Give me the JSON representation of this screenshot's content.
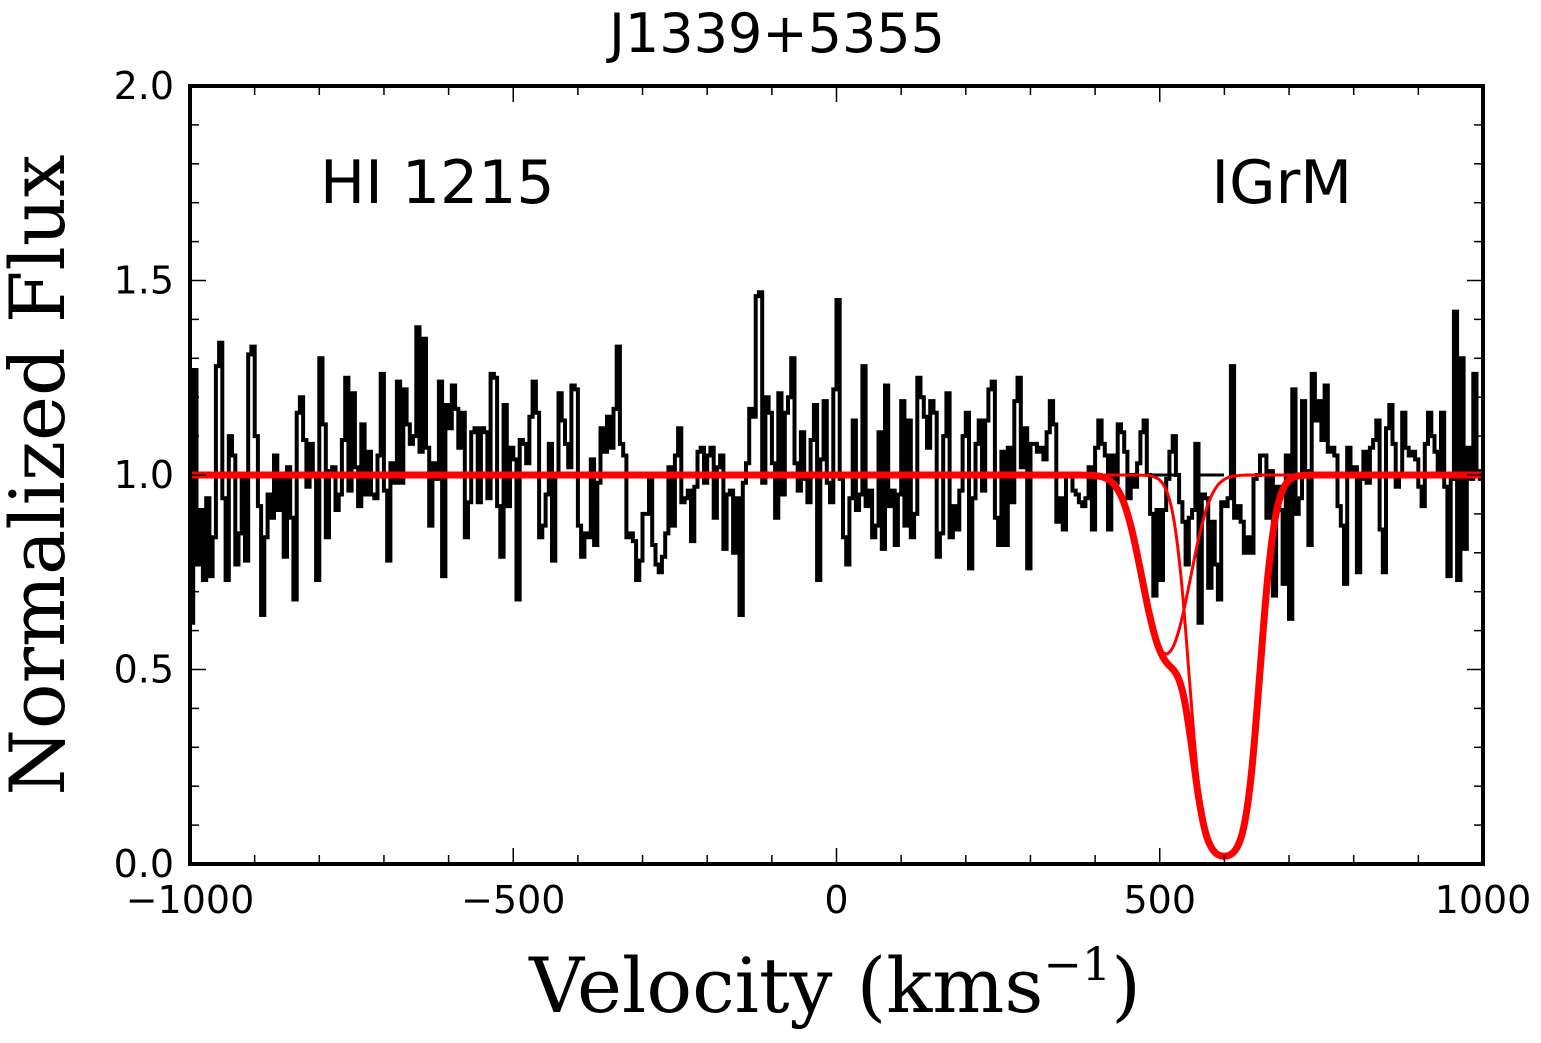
{
  "chart_data": {
    "type": "line",
    "title": "J1339+5355",
    "xlabel": "Velocity (kms",
    "xlabel_sup": "−1",
    "xlabel_close": ")",
    "ylabel": "Normalized Flux",
    "xlim": [
      -1000,
      1000
    ],
    "ylim": [
      0,
      2
    ],
    "xticks": [
      -1000,
      -500,
      0,
      500,
      1000
    ],
    "xtick_labels": [
      "−1000",
      "−500",
      "0",
      "500",
      "1000"
    ],
    "yticks": [
      0,
      0.5,
      1,
      1.5,
      2
    ],
    "ytick_labels": [
      "0.0",
      "0.5",
      "1.0",
      "1.5",
      "2.0"
    ],
    "annotations": [
      {
        "text": "HI 1215",
        "position": "top-left"
      },
      {
        "text": "IGrM",
        "position": "top-right"
      }
    ],
    "continuum": 1.0,
    "series": [
      {
        "style": "step",
        "color": "#000000",
        "x_start": -1000,
        "x_step": 5,
        "values": [
          0.62,
          1.27,
          0.77,
          0.91,
          0.73,
          0.94,
          0.74,
          0.84,
          1.28,
          1.34,
          0.94,
          0.73,
          1.1,
          1.05,
          0.77,
          0.85,
          0.99,
          0.78,
          1.31,
          1.33,
          1.1,
          0.92,
          0.64,
          0.84,
          0.95,
          0.89,
          1.05,
          0.91,
          1.0,
          0.79,
          1.02,
          0.89,
          0.68,
          1.16,
          1.2,
          1.09,
          0.97,
          1.08,
          1.0,
          0.73,
          1.3,
          1.13,
          0.84,
          1.01,
          1.02,
          0.91,
          0.95,
          1.09,
          1.25,
          0.96,
          1.21,
          1.02,
          0.92,
          1.13,
          0.95,
          1.06,
          0.95,
          0.94,
          1.05,
          1.26,
          0.96,
          0.78,
          1.03,
          0.98,
          1.24,
          0.98,
          1.22,
          1.13,
          1.08,
          1.1,
          1.38,
          1.06,
          1.35,
          1.07,
          0.87,
          1.03,
          0.99,
          1.24,
          0.74,
          1.18,
          1.12,
          1.23,
          1.17,
          1.07,
          1.16,
          0.84,
          0.93,
          1.11,
          1.12,
          0.93,
          1.12,
          1.11,
          0.94,
          1.26,
          1.25,
          0.92,
          0.79,
          1.18,
          0.92,
          1.07,
          1.04,
          0.68,
          1.09,
          1.08,
          1.03,
          1.15,
          1.24,
          1.16,
          0.84,
          0.87,
          0.95,
          1.08,
          0.78,
          1.0,
          1.21,
          1.14,
          1.08,
          1.02,
          1.23,
          1.22,
          0.87,
          0.79,
          0.85,
          0.84,
          1.04,
          0.82,
          0.98,
          1.12,
          1.06,
          1.15,
          1.07,
          1.17,
          1.33,
          1.08,
          1.05,
          0.84,
          0.85,
          0.83,
          0.73,
          0.78,
          0.9,
          0.9,
          1.0,
          0.82,
          0.77,
          0.75,
          0.79,
          0.85,
          1.02,
          0.87,
          1.05,
          1.12,
          0.93,
          0.94,
          0.96,
          0.83,
          0.97,
          1.06,
          1.07,
          0.98,
          1.05,
          1.07,
          0.89,
          1.02,
          1.05,
          0.81,
          0.95,
          0.96,
          0.8,
          0.94,
          0.64,
          0.98,
          1.03,
          1.17,
          1.15,
          1.46,
          1.47,
          0.98,
          1.2,
          1.16,
          1.03,
          0.89,
          1.21,
          0.95,
          1.16,
          1.2,
          1.3,
          1.03,
          0.96,
          1.11,
          0.99,
          0.93,
          1.09,
          1.18,
          0.73,
          1.04,
          1.19,
          0.98,
          0.93,
          1.22,
          1.45,
          0.99,
          0.84,
          0.77,
          0.94,
          1.14,
          0.91,
          0.95,
          1.28,
          0.92,
          0.96,
          0.84,
          0.87,
          1.11,
          0.81,
          1.23,
          0.92,
          0.96,
          0.82,
          0.95,
          1.19,
          0.87,
          1.14,
          0.84,
          0.9,
          1.25,
          1.2,
          1.15,
          1.07,
          1.19,
          1.16,
          0.79,
          0.85,
          1.1,
          1.21,
          0.84,
          0.92,
          0.86,
          0.96,
          1.1,
          1.16,
          0.76,
          0.94,
          1.08,
          1.14,
          0.96,
          1.14,
          1.22,
          1.24,
          0.89,
          0.82,
          1.06,
          0.82,
          1.07,
          0.93,
          1.19,
          1.25,
          1.02,
          1.12,
          0.76,
          1.08,
          1.08,
          1.06,
          1.07,
          1.04,
          1.11,
          1.19,
          1.13,
          0.88,
          0.94,
          0.86,
          1.0,
          1.0,
          0.96,
          0.95,
          0.93,
          0.92,
          0.94,
          1.02,
          0.86,
          1.07,
          1.14,
          1.08,
          1.05,
          0.86,
          1.05,
          0.98,
          1.13,
          1.11,
          1.06,
          0.94,
          1.0,
          0.97,
          1.03,
          1.11,
          1.14,
          1.0,
          0.9,
          0.69,
          0.91,
          0.73,
          0.91,
          0.99,
          1.06,
          1.1,
          1.0,
          0.93,
          0.88,
          0.77,
          0.89,
          0.91,
          1.08,
          0.62,
          0.95,
          0.94,
          0.71,
          0.88,
          0.77,
          0.68,
          0.93,
          0.92,
          0.94,
          1.28,
          0.89,
          0.92,
          0.88,
          0.8,
          0.84,
          0.8,
          0.99,
          1.0,
          1.05,
          1.05,
          0.89,
          1.01,
          0.69,
          0.97,
          0.91,
          0.72,
          1.05,
          0.63,
          1.22,
          0.9,
          0.94,
          1.19,
          1.01,
          0.82,
          1.26,
          1.14,
          1.19,
          1.09,
          1.23,
          1.06,
          1.07,
          1.05,
          0.92,
          0.87,
          0.72,
          1.07,
          1.0,
          1.02,
          0.75,
          0.99,
          1.06,
          0.98,
          1.07,
          1.09,
          1.14,
          0.86,
          0.75,
          1.12,
          1.18,
          1.08,
          0.97,
          1.0,
          1.16,
          1.07,
          1.05,
          1.06,
          1.04,
          0.97,
          0.92,
          1.08,
          1.16,
          1.1,
          1.06,
          1.0,
          1.16,
          0.97,
          0.74,
          0.99,
          1.42,
          0.73,
          1.3,
          0.81,
          1.07,
          0.99,
          1.26,
          1.01,
          0.99,
          1.13,
          0.9,
          0.9,
          0.71,
          0.89,
          1.11,
          0.78,
          0.91,
          0.92,
          1.0,
          0.98,
          0.78,
          1.01,
          0.92,
          1.33,
          1.0,
          1.03,
          1.07,
          0.64,
          0.99,
          0.93,
          0.91,
          0.95,
          0.92,
          1.0,
          0.89,
          0.92,
          1.22,
          0.97,
          1.14,
          0.9,
          0.69,
          0.96,
          0.84,
          0.83,
          0.93,
          0.93,
          0.98,
          0.63,
          0.93,
          1.04,
          1.12,
          0.94,
          0.79,
          0.7,
          0.84,
          0.6,
          0.82,
          0.82,
          0.55,
          0.44,
          0.49,
          0.53,
          0.51,
          0.37,
          0.48,
          0.46,
          0.36,
          0.47,
          0.5,
          0.35,
          0.48,
          0.55,
          0.3,
          0.23,
          0.08,
          0.22,
          0.15,
          0.07,
          0.12,
          0.06,
          0.1,
          0.06,
          0.04,
          0.04,
          0.03,
          0.03,
          0.04,
          0.08,
          0.06,
          0.1,
          0.13,
          0.29,
          0.3,
          0.56,
          0.53,
          0.44,
          0.61,
          0.69,
          0.88,
          0.87,
          0.93,
          1.01,
          0.95,
          1.13,
          0.99,
          0.81,
          1.0,
          0.91,
          0.85,
          0.97,
          1.2,
          1.16,
          1.12,
          0.89,
          1.11,
          0.82,
          1.04,
          1.11,
          0.79,
          1.1,
          1.01,
          0.71,
          0.95,
          0.78,
          1.25,
          0.78,
          1.13,
          0.72,
          0.96,
          1.18,
          1.04,
          1.19,
          0.64,
          0.88,
          1.03,
          0.77,
          0.97,
          0.86,
          0.96,
          0.81,
          0.85,
          0.92,
          1.08,
          0.8,
          1.04,
          1.1,
          0.62,
          1.23,
          0.87,
          0.99,
          1.1,
          1.23,
          0.99,
          0.97,
          1.12,
          1.05,
          1.0,
          1.09,
          0.93,
          0.99,
          0.99,
          1.05,
          1.13,
          1.01,
          0.97,
          0.89,
          0.9,
          1.19,
          0.89,
          0.8,
          1.05,
          0.92,
          0.97,
          1.14,
          0.93,
          1.15,
          1.14,
          0.71,
          1.08,
          1.14,
          0.74,
          0.98,
          0.9,
          0.8,
          0.94,
          0.82,
          0.87,
          1.03,
          1.02,
          1.23,
          1.18,
          1.11,
          1.08,
          1.07,
          0.87,
          0.75,
          1.19,
          0.81,
          0.83,
          0.95,
          1.09,
          0.99,
          0.77,
          0.95,
          0.8,
          1.28,
          0.84,
          1.07,
          1.04,
          0.87
        ]
      },
      {
        "style": "line",
        "color": "#ff0000",
        "role": "total model",
        "components": [
          {
            "center": 510,
            "depth": 0.46,
            "b": 45
          },
          {
            "center": 600,
            "depth": 0.98,
            "b": 42
          }
        ]
      },
      {
        "style": "line",
        "color": "#ff0000",
        "role": "component",
        "components": [
          {
            "center": 510,
            "depth": 0.46,
            "b": 45
          }
        ]
      },
      {
        "style": "line",
        "color": "#ff0000",
        "role": "component",
        "components": [
          {
            "center": 600,
            "depth": 0.98,
            "b": 42
          }
        ]
      }
    ]
  }
}
